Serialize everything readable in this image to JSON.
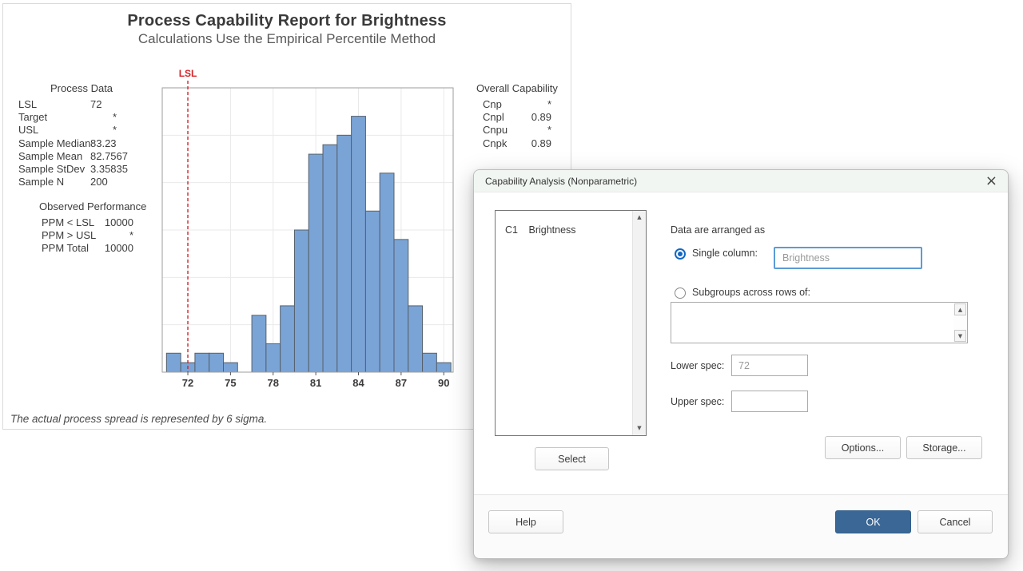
{
  "report": {
    "title": "Process Capability Report for Brightness",
    "subtitle": "Calculations Use the Empirical Percentile Method",
    "footnote": "The actual process spread is represented by 6 sigma.",
    "process_data": {
      "heading": "Process Data",
      "rows": [
        {
          "label": "LSL",
          "value": "72"
        },
        {
          "label": "Target",
          "value": "*",
          "star": true
        },
        {
          "label": "USL",
          "value": "*",
          "star": true
        },
        {
          "label": "Sample Median",
          "value": "83.23"
        },
        {
          "label": "Sample Mean",
          "value": "82.7567"
        },
        {
          "label": "Sample StDev",
          "value": "3.35835"
        },
        {
          "label": "Sample N",
          "value": "200"
        }
      ]
    },
    "observed_performance": {
      "heading": "Observed Performance",
      "rows": [
        {
          "label": "PPM < LSL",
          "value": "10000"
        },
        {
          "label": "PPM > USL",
          "value": "*"
        },
        {
          "label": "PPM Total",
          "value": "10000"
        }
      ]
    },
    "overall_capability": {
      "heading": "Overall Capability",
      "rows": [
        {
          "label": "Cnp",
          "value": "*"
        },
        {
          "label": "Cnpl",
          "value": "0.89"
        },
        {
          "label": "Cnpu",
          "value": "*"
        },
        {
          "label": "Cnpk",
          "value": "0.89"
        }
      ]
    }
  },
  "chart_data": {
    "type": "bar",
    "title": "Process Capability Report for Brightness",
    "subtitle": "Calculations Use the Empirical Percentile Method",
    "xlabel": "",
    "ylabel": "",
    "bin_width": 1,
    "bin_centers": [
      71,
      72,
      73,
      74,
      75,
      76,
      77,
      78,
      79,
      80,
      81,
      82,
      83,
      84,
      85,
      86,
      87,
      88,
      89,
      90
    ],
    "counts": [
      2,
      1,
      2,
      2,
      1,
      0,
      6,
      3,
      7,
      15,
      23,
      24,
      25,
      27,
      17,
      21,
      14,
      7,
      2,
      1
    ],
    "x_ticks": [
      72,
      75,
      78,
      81,
      84,
      87,
      90
    ],
    "xlim": [
      70.2,
      90.66
    ],
    "ylim": [
      0,
      30
    ],
    "y_grid_step": 5,
    "grid": true,
    "legend": false,
    "reference_lines": [
      {
        "label": "LSL",
        "value": 72,
        "color": "#D2232A",
        "style": "dashed"
      }
    ],
    "colors": {
      "bar_fill": "#7BA4D6",
      "bar_stroke": "#55606B",
      "gridline": "#E9E9E9",
      "frame": "#9E9E9E",
      "tick": "#555555",
      "tick_label": "#3B3B3B"
    }
  },
  "dialog": {
    "title": "Capability Analysis (Nonparametric)",
    "arranged_label": "Data are arranged as",
    "listbox": {
      "items": [
        {
          "id": "C1",
          "name": "Brightness"
        }
      ]
    },
    "single_column": {
      "label": "Single column:",
      "selected": true,
      "value": "Brightness"
    },
    "subgroups": {
      "label": "Subgroups across rows of:",
      "selected": false,
      "value": ""
    },
    "lower_spec": {
      "label": "Lower spec:",
      "value": "72"
    },
    "upper_spec": {
      "label": "Upper spec:",
      "value": ""
    },
    "buttons": {
      "select": "Select",
      "options": "Options...",
      "storage": "Storage...",
      "help": "Help",
      "ok": "OK",
      "cancel": "Cancel"
    },
    "icons": {
      "close": "×",
      "scroll_up": "▲",
      "scroll_down": "▼"
    },
    "colors": {
      "ok_bg": "#3A6795",
      "radio_accent": "#1268C4",
      "focus_border": "#5B9BD5",
      "titlebar_bg": "#F1F6F2"
    }
  }
}
